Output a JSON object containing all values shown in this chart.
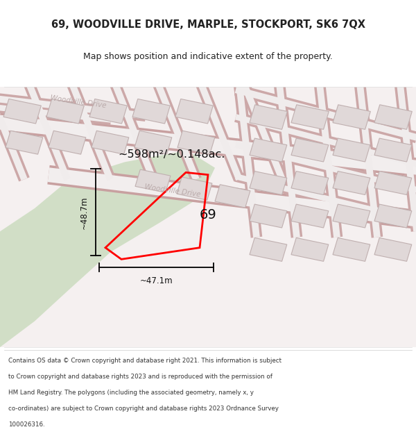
{
  "title_line1": "69, WOODVILLE DRIVE, MARPLE, STOCKPORT, SK6 7QX",
  "title_line2": "Map shows position and indicative extent of the property.",
  "area_text": "~598m²/~0.148ac.",
  "label_69": "69",
  "dim_width": "~47.1m",
  "dim_height": "~48.7m",
  "road_label1": "Woodville Drive",
  "road_label2": "Woodville Drive",
  "footer_lines": [
    "Contains OS data © Crown copyright and database right 2021. This information is subject",
    "to Crown copyright and database rights 2023 and is reproduced with the permission of",
    "HM Land Registry. The polygons (including the associated geometry, namely x, y",
    "co-ordinates) are subject to Crown copyright and database rights 2023 Ordnance Survey",
    "100026316."
  ],
  "map_bg": "#f5f0f0",
  "road_color": "#f8f4f4",
  "road_border": "#c8a0a0",
  "building_fill": "#e0d8d8",
  "building_border": "#c0b0b0",
  "plot_outline": "#ff0000",
  "green_fill": "#c5d9b8",
  "dim_line_color": "#000000",
  "title_color": "#222222",
  "footer_color": "#333333"
}
